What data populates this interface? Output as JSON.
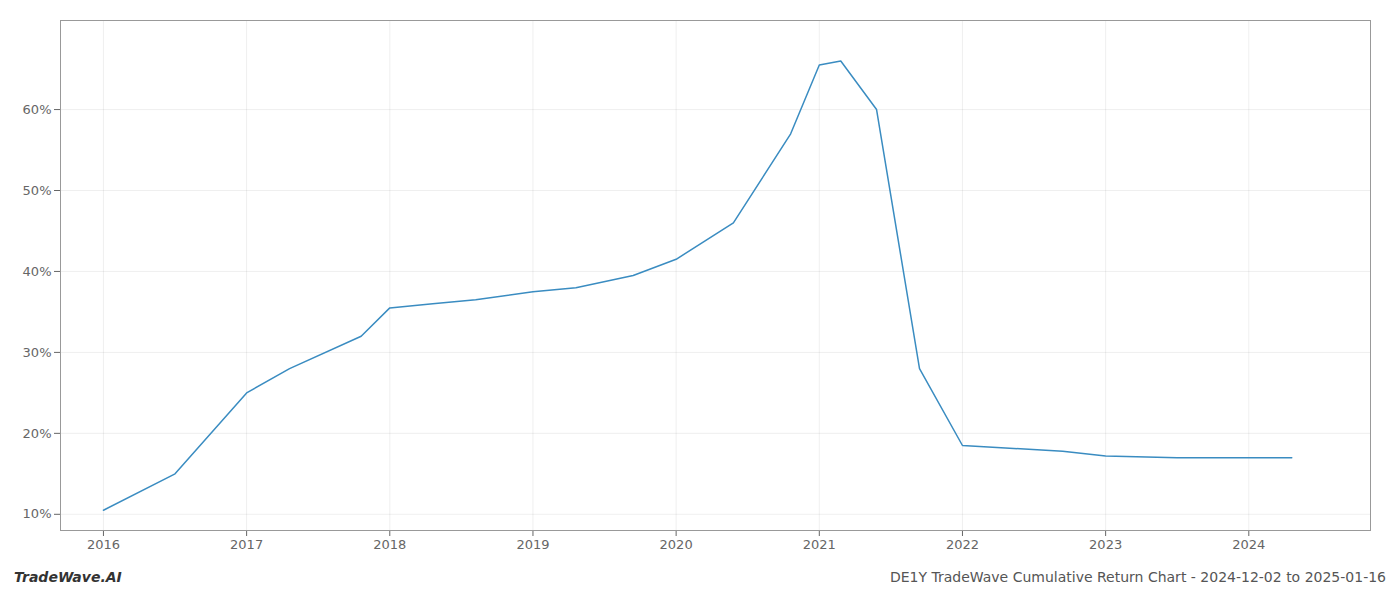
{
  "chart_data": {
    "type": "line",
    "title": "DE1Y TradeWave Cumulative Return Chart - 2024-12-02 to 2025-01-16",
    "annotations": [
      "TradeWave.AI"
    ],
    "x": [
      2016,
      2016.5,
      2017,
      2017.3,
      2017.8,
      2018,
      2018.3,
      2018.6,
      2019,
      2019.3,
      2019.7,
      2020,
      2020.4,
      2020.8,
      2021,
      2021.15,
      2021.4,
      2021.7,
      2022,
      2022.3,
      2022.7,
      2023,
      2023.5,
      2024,
      2024.3
    ],
    "values": [
      10.5,
      15,
      25,
      28,
      32,
      35.5,
      36,
      36.5,
      37.5,
      38,
      39.5,
      41.5,
      46,
      57,
      65.5,
      66,
      60,
      28,
      18.5,
      18.2,
      17.8,
      17.2,
      17.0,
      17.0,
      17.0
    ],
    "color": "#3a8cc1",
    "xlim": [
      2015.7,
      2024.85
    ],
    "xticks": [
      2016,
      2017,
      2018,
      2019,
      2020,
      2021,
      2022,
      2023,
      2024
    ],
    "ylim": [
      8,
      71
    ],
    "yticks": [
      {
        "value": 10,
        "label": "10%"
      },
      {
        "value": 20,
        "label": "20%"
      },
      {
        "value": 30,
        "label": "30%"
      },
      {
        "value": 40,
        "label": "40%"
      },
      {
        "value": 50,
        "label": "50%"
      },
      {
        "value": 60,
        "label": "60%"
      }
    ],
    "grid": true
  }
}
